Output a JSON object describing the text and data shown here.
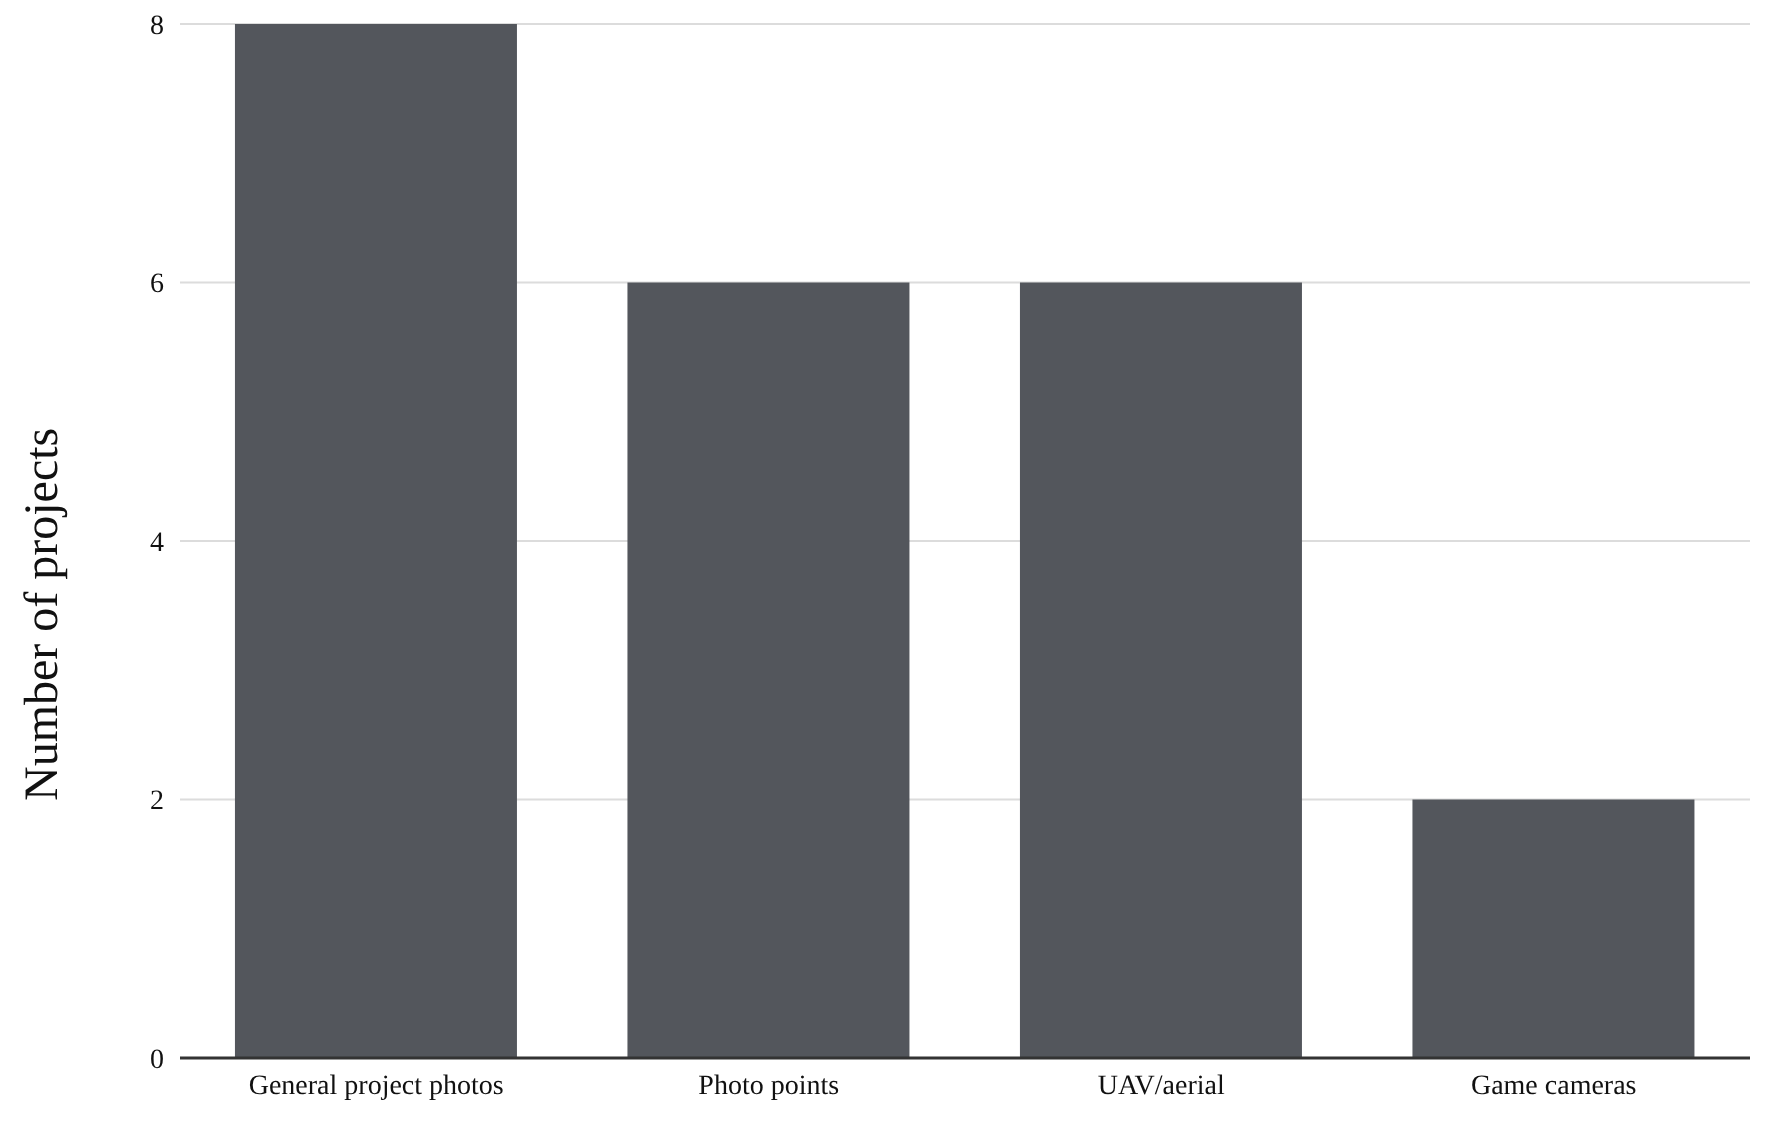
{
  "chart_data": {
    "type": "bar",
    "ylabel": "Number of projects",
    "categories": [
      "General project photos",
      "Photo points",
      "UAV/aerial",
      "Game cameras"
    ],
    "values": [
      8,
      6,
      6,
      2
    ],
    "color": "#53565c",
    "ylim": [
      0,
      8
    ],
    "yticks": [
      0,
      2,
      4,
      6,
      8
    ],
    "grid": "y"
  }
}
